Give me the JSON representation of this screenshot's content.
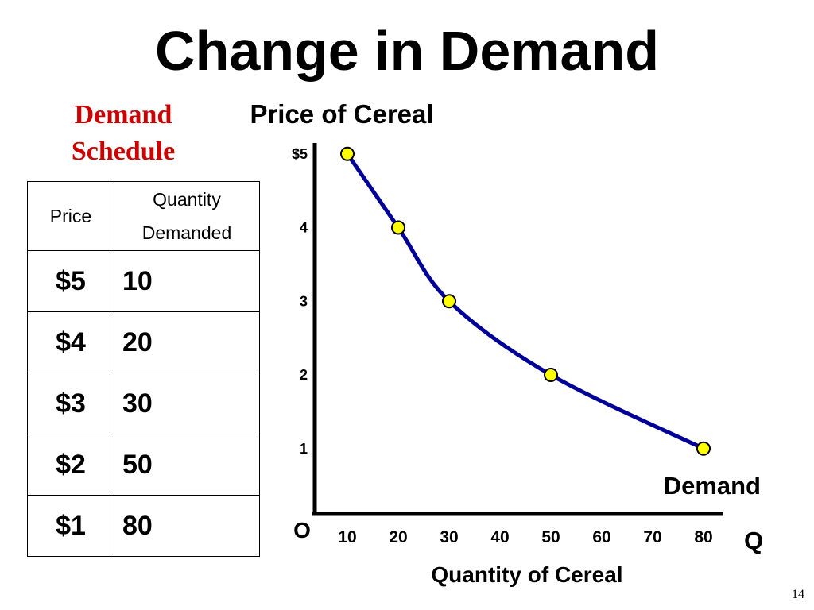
{
  "slide": {
    "title": "Change in Demand",
    "page_number": "14"
  },
  "schedule": {
    "title_line1": "Demand",
    "title_line2": "Schedule",
    "headers": {
      "price": "Price",
      "qty_line1": "Quantity",
      "qty_line2": "Demanded"
    },
    "rows": [
      {
        "price": "$5",
        "qty": "10"
      },
      {
        "price": "$4",
        "qty": "20"
      },
      {
        "price": "$3",
        "qty": "30"
      },
      {
        "price": "$2",
        "qty": "50"
      },
      {
        "price": "$1",
        "qty": "80"
      }
    ]
  },
  "chart_data": {
    "type": "line",
    "title": "Price of Cereal",
    "xlabel": "Quantity of Cereal",
    "ylabel": "Price of Cereal",
    "x_axis_letter": "Q",
    "origin_label": "O",
    "x_ticks": [
      "10",
      "20",
      "30",
      "40",
      "50",
      "60",
      "70",
      "80"
    ],
    "y_ticks": [
      "1",
      "2",
      "3",
      "4",
      "$5"
    ],
    "xlim": [
      0,
      80
    ],
    "ylim": [
      0,
      5
    ],
    "series": [
      {
        "name": "Demand",
        "points": [
          {
            "x": 10,
            "y": 5
          },
          {
            "x": 20,
            "y": 4
          },
          {
            "x": 30,
            "y": 3
          },
          {
            "x": 50,
            "y": 2
          },
          {
            "x": 80,
            "y": 1
          }
        ]
      }
    ],
    "grid": false,
    "colors": {
      "curve": "#000099",
      "marker_fill": "#ffff00",
      "marker_stroke": "#000000"
    }
  }
}
